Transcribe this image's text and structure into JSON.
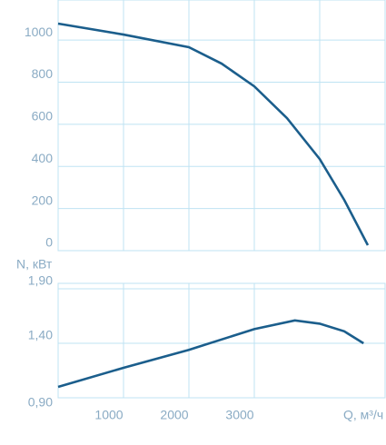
{
  "chart_data": [
    {
      "type": "line",
      "x": [
        0,
        1000,
        2000,
        2500,
        3000,
        3500,
        4000,
        4375,
        4736
      ],
      "series": [
        {
          "color": "#1b5e8c",
          "values": [
            1078,
            1026,
            966,
            888,
            780,
            629,
            435,
            241,
            26
          ]
        }
      ],
      "xlim": [
        0,
        5000
      ],
      "xticks": [
        1000,
        2000,
        3000,
        4000
      ],
      "xtick_labels": false,
      "ylim": [
        0,
        1190
      ],
      "yticks": [
        0,
        200,
        400,
        600,
        800,
        1000
      ],
      "grid": true
    },
    {
      "type": "line",
      "y_label": "N, кВт",
      "x_label": "Q, м³/ч",
      "x": [
        0,
        1000,
        2000,
        3000,
        3620,
        4000,
        4375,
        4670
      ],
      "series": [
        {
          "color": "#1b5e8c",
          "values": [
            1.0,
            1.175,
            1.34,
            1.53,
            1.61,
            1.58,
            1.51,
            1.4
          ]
        }
      ],
      "xlim": [
        0,
        5000
      ],
      "xticks": [
        1000,
        2000,
        3000
      ],
      "xtick_labels": true,
      "ylim": [
        0.9,
        1.95
      ],
      "yticks": [
        {
          "value": 0.9,
          "label": "0,90"
        },
        {
          "value": 1.4,
          "label": "1,40"
        },
        {
          "value": 1.9,
          "label": "1,90"
        }
      ],
      "grid": true
    }
  ]
}
